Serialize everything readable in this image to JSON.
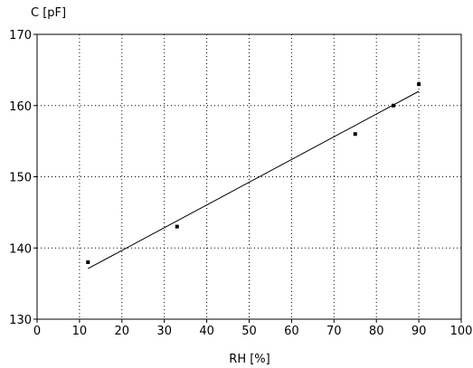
{
  "chart_data": {
    "type": "scatter",
    "title": "",
    "xlabel": "RH [%]",
    "ylabel": "C [pF]",
    "xlim": [
      0,
      100
    ],
    "ylim": [
      130,
      170
    ],
    "x_ticks": [
      0,
      10,
      20,
      30,
      40,
      50,
      60,
      70,
      80,
      90,
      100
    ],
    "y_ticks": [
      130,
      140,
      150,
      160,
      170
    ],
    "x_tick_labels": [
      "0",
      "10",
      "20",
      "30",
      "40",
      "50",
      "60",
      "70",
      "80",
      "90",
      "100"
    ],
    "y_tick_labels": [
      "130",
      "140",
      "150",
      "160",
      "170"
    ],
    "grid": true,
    "grid_style": "dotted",
    "marker_color": "#000000",
    "series": [
      {
        "points": [
          {
            "x": 12,
            "y": 138
          },
          {
            "x": 33,
            "y": 143
          },
          {
            "x": 75,
            "y": 156
          },
          {
            "x": 84,
            "y": 160
          },
          {
            "x": 90,
            "y": 163
          }
        ]
      }
    ],
    "fit_line": {
      "x": [
        12,
        90
      ],
      "y": [
        137.1,
        162.0
      ]
    }
  }
}
